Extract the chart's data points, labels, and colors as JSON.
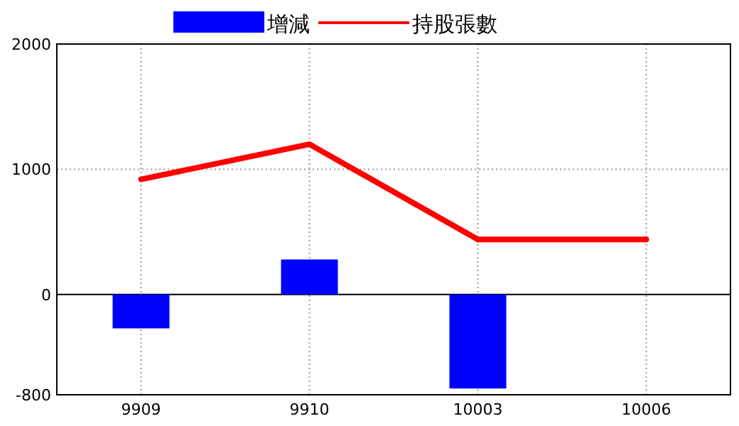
{
  "chart_data": {
    "type": "bar",
    "categories": [
      "9909",
      "9910",
      "10003",
      "10006"
    ],
    "series": [
      {
        "name": "增減",
        "color": "#0000ff",
        "values": [
          -270,
          280,
          -750,
          null
        ]
      },
      {
        "name": "持股張數",
        "type": "line",
        "color": "#ff0000",
        "values": [
          920,
          1200,
          440,
          440
        ]
      }
    ],
    "ylim": [
      -800,
      2000
    ],
    "yticks": [
      -800,
      0,
      1000,
      2000
    ],
    "grid": true,
    "legend": "top",
    "marker": "none",
    "line_style": "solid"
  }
}
